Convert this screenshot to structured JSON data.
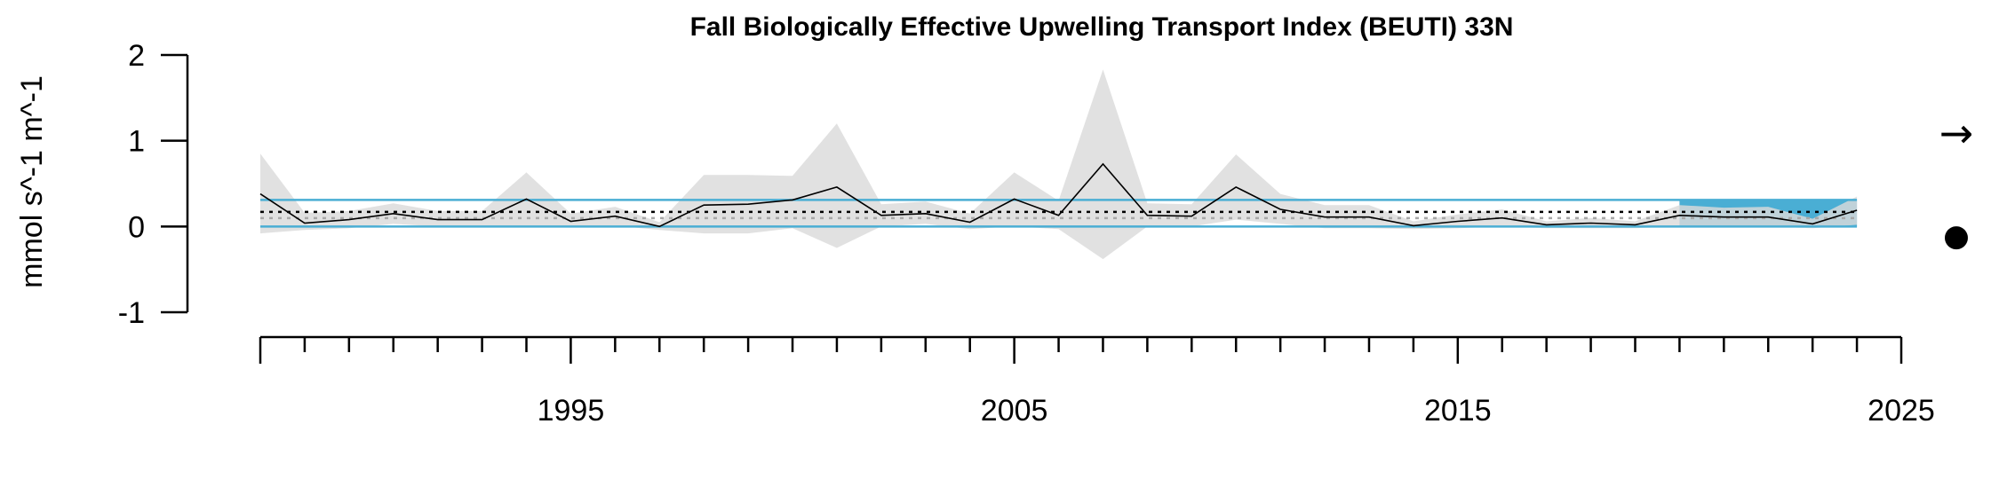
{
  "chart_data": {
    "type": "line",
    "title": "Fall Biologically Effective Upwelling Transport Index (BEUTI) 33N",
    "ylabel": "mmol s^-1 m^-1",
    "xlabel": "",
    "xlim": [
      1988,
      2025
    ],
    "ylim": [
      -1,
      2
    ],
    "x_tick_labels": [
      "1995",
      "2005",
      "2015",
      "2025"
    ],
    "x_major_ticks": [
      1988,
      1995,
      2005,
      2015,
      2025
    ],
    "y_ticks": [
      -1,
      0,
      1,
      2
    ],
    "y_tick_labels": [
      "-1",
      "0",
      "1",
      "2"
    ],
    "x": [
      1988,
      1989,
      1990,
      1991,
      1992,
      1993,
      1994,
      1995,
      1996,
      1997,
      1998,
      1999,
      2000,
      2001,
      2002,
      2003,
      2004,
      2005,
      2006,
      2007,
      2008,
      2009,
      2010,
      2011,
      2012,
      2013,
      2014,
      2015,
      2016,
      2017,
      2018,
      2019,
      2020,
      2021,
      2022,
      2023,
      2024
    ],
    "series": [
      {
        "values": [
          0.38,
          0.04,
          0.08,
          0.15,
          0.08,
          0.08,
          0.32,
          0.06,
          0.12,
          0.0,
          0.25,
          0.26,
          0.31,
          0.46,
          0.13,
          0.15,
          0.05,
          0.32,
          0.13,
          0.73,
          0.13,
          0.12,
          0.46,
          0.2,
          0.11,
          0.11,
          0.01,
          0.06,
          0.1,
          0.02,
          0.04,
          0.02,
          0.13,
          0.11,
          0.11,
          0.03,
          0.19
        ],
        "lower": [
          -0.08,
          -0.04,
          -0.02,
          0.03,
          0.0,
          0.0,
          0.01,
          0.0,
          0.01,
          -0.04,
          -0.08,
          -0.08,
          -0.02,
          -0.25,
          0.0,
          0.03,
          -0.03,
          0.0,
          -0.03,
          -0.38,
          0.0,
          0.0,
          0.08,
          0.03,
          -0.02,
          -0.02,
          -0.03,
          -0.02,
          0.0,
          -0.02,
          -0.02,
          -0.02,
          0.0,
          0.0,
          0.0,
          -0.02,
          0.02
        ],
        "upper": [
          0.85,
          0.16,
          0.18,
          0.27,
          0.18,
          0.18,
          0.63,
          0.15,
          0.23,
          0.05,
          0.6,
          0.6,
          0.59,
          1.2,
          0.26,
          0.29,
          0.15,
          0.63,
          0.3,
          1.83,
          0.27,
          0.26,
          0.84,
          0.38,
          0.25,
          0.25,
          0.06,
          0.14,
          0.2,
          0.06,
          0.1,
          0.06,
          0.25,
          0.22,
          0.23,
          0.09,
          0.35
        ]
      }
    ],
    "mean": 0.16,
    "sd_upper": 0.31,
    "sd_lower": 0.0,
    "recent_window": [
      2020,
      2024
    ],
    "recent_trend_symbol": "→",
    "recent_mean_symbol": "●",
    "colors": {
      "band": "#dadada",
      "line": "#000000",
      "sd_lines": "#4aaed4",
      "recent_fill": "#4aaed4",
      "mean_dotted": "#000000",
      "grey_dotted": "#a8a8a8"
    }
  }
}
